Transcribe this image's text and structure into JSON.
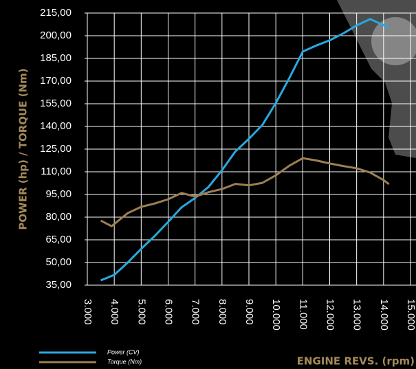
{
  "chart_data": {
    "type": "line",
    "x_label": "ENGINE REVS. (rpm)",
    "y_label": "POWER (hp) / TORQUE (Nm)",
    "xlim": [
      3000,
      15000
    ],
    "ylim": [
      35,
      215
    ],
    "xticks": [
      {
        "value": 3000,
        "label": "3.000"
      },
      {
        "value": 4000,
        "label": "4.000"
      },
      {
        "value": 5000,
        "label": "5.000"
      },
      {
        "value": 6000,
        "label": "6.000"
      },
      {
        "value": 7000,
        "label": "7.000"
      },
      {
        "value": 8000,
        "label": "8.000"
      },
      {
        "value": 9000,
        "label": "9.000"
      },
      {
        "value": 10000,
        "label": "10.000"
      },
      {
        "value": 11000,
        "label": "11.000"
      },
      {
        "value": 12000,
        "label": "12.000"
      },
      {
        "value": 13000,
        "label": "13.000"
      },
      {
        "value": 14000,
        "label": "14.000"
      },
      {
        "value": 15000,
        "label": "15.000"
      }
    ],
    "yticks": [
      {
        "value": 35,
        "label": "35,00"
      },
      {
        "value": 50,
        "label": "50,00"
      },
      {
        "value": 65,
        "label": "65,00"
      },
      {
        "value": 80,
        "label": "80,00"
      },
      {
        "value": 95,
        "label": "95,00"
      },
      {
        "value": 110,
        "label": "110,00"
      },
      {
        "value": 125,
        "label": "125,00"
      },
      {
        "value": 140,
        "label": "140,00"
      },
      {
        "value": 155,
        "label": "155,00"
      },
      {
        "value": 170,
        "label": "170,00"
      },
      {
        "value": 185,
        "label": "185,00"
      },
      {
        "value": 200,
        "label": "200,00"
      },
      {
        "value": 215,
        "label": "215,00"
      }
    ],
    "grid": true,
    "series": [
      {
        "name": "Power (CV)",
        "color": "#29a8e0",
        "x": [
          3500,
          4000,
          4500,
          5000,
          5500,
          6000,
          6500,
          7000,
          7500,
          8000,
          8500,
          9000,
          9500,
          10000,
          10500,
          11000,
          11500,
          12000,
          12500,
          13000,
          13500,
          14000,
          14200
        ],
        "values": [
          38.2,
          41.8,
          50,
          59,
          67.5,
          76.8,
          86.5,
          92.7,
          100,
          111,
          123.5,
          131.8,
          141,
          155.5,
          172,
          189.5,
          193.5,
          197,
          201.5,
          206.8,
          211,
          207,
          205
        ]
      },
      {
        "name": "Torque (Nm)",
        "color": "#9c8052",
        "x": [
          3500,
          3900,
          4500,
          5000,
          5500,
          6000,
          6500,
          7000,
          7500,
          8000,
          8500,
          9000,
          9500,
          10000,
          10500,
          11000,
          11500,
          12000,
          12500,
          13000,
          13500,
          14000,
          14200
        ],
        "values": [
          77.7,
          74,
          82.7,
          86.8,
          89,
          91.8,
          96,
          93.6,
          96.5,
          98.6,
          102,
          101,
          102.7,
          107.7,
          114,
          119,
          117.5,
          115.5,
          113.8,
          112.3,
          109.5,
          104.5,
          101.8
        ]
      }
    ]
  }
}
